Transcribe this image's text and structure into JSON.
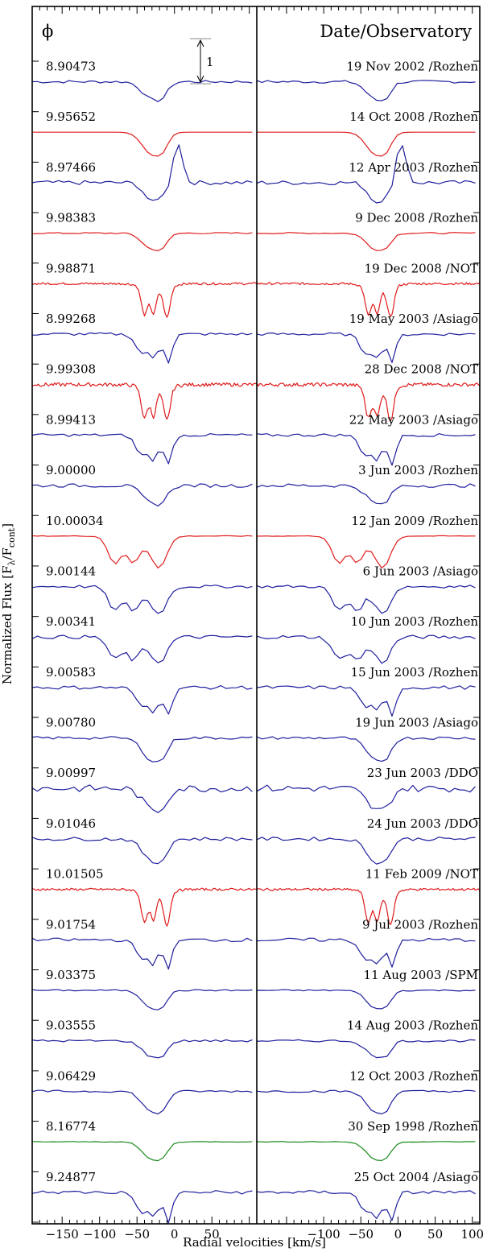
{
  "chart_data": {
    "type": "line",
    "phase_header": "ϕ",
    "right_header": "Date/Observatory",
    "xlabel": "Radial velocities [km/s]",
    "ylabel": "Normalized Flux [F_λ/F_cont]",
    "ylabel_parts": {
      "pre": "Normalized Flux [F",
      "sub1": "λ",
      "mid": "/F",
      "sub2": "cont",
      "post": "]"
    },
    "scale_label": "1",
    "scale_bar_flux": 1,
    "xlim": [
      -190,
      110
    ],
    "panels": [
      "left",
      "right"
    ],
    "xticks": [
      -150,
      -100,
      -50,
      0,
      50,
      100
    ],
    "xtick_labels_left": [
      "−150",
      "−100",
      "−50",
      "0",
      "50"
    ],
    "xtick_labels_right": [
      "−100",
      "−50",
      "0",
      "50",
      "100"
    ],
    "colors": {
      "rozhen_ddo_spm": "#1f1f9e",
      "asiago_not_series": "#e01a1a",
      "green": "#1b8a1b",
      "axis": "#000000"
    },
    "series": [
      {
        "phase": "8.90473",
        "date_observatory": "19 Nov 2002 /Rozhen",
        "color": "#1f1f9e",
        "style": "smooth1",
        "depth": 0.55,
        "noise": 0.04
      },
      {
        "phase": "9.95652",
        "date_observatory": "14 Oct 2008 /Rozhen",
        "color": "#e01a1a",
        "style": "smooth1",
        "depth": 0.7,
        "noise": 0.0
      },
      {
        "phase": "8.97466",
        "date_observatory": "12 Apr 2003 /Rozhen",
        "color": "#1f1f9e",
        "style": "emission",
        "depth": 0.8,
        "noise": 0.06
      },
      {
        "phase": "9.98383",
        "date_observatory": "9 Dec 2008 /Rozhen",
        "color": "#e01a1a",
        "style": "smooth1",
        "depth": 0.5,
        "noise": 0.02
      },
      {
        "phase": "9.98871",
        "date_observatory": "19 Dec 2008 /NOT",
        "color": "#e01a1a",
        "style": "double_sharp",
        "depth": 0.8,
        "noise": 0.05
      },
      {
        "phase": "8.99268",
        "date_observatory": "19 May 2003 /Asiago",
        "color": "#1f1f9e",
        "style": "double",
        "depth": 0.75,
        "noise": 0.04
      },
      {
        "phase": "9.99308",
        "date_observatory": "28 Dec 2008 /NOT",
        "color": "#e01a1a",
        "style": "double_sharp",
        "depth": 0.85,
        "noise": 0.08
      },
      {
        "phase": "8.99413",
        "date_observatory": "22 May 2003 /Asiago",
        "color": "#1f1f9e",
        "style": "double",
        "depth": 0.8,
        "noise": 0.04
      },
      {
        "phase": "9.00000",
        "date_observatory": "3 Jun 2003 /Rozhen",
        "color": "#1f1f9e",
        "style": "smooth1",
        "depth": 0.55,
        "noise": 0.05
      },
      {
        "phase": "10.00034",
        "date_observatory": "12 Jan 2009 /Rozhen",
        "color": "#e01a1a",
        "style": "wide_double",
        "depth": 0.9,
        "noise": 0.01
      },
      {
        "phase": "9.00144",
        "date_observatory": "6 Jun 2003 /Asiago",
        "color": "#1f1f9e",
        "style": "wide_double",
        "depth": 0.75,
        "noise": 0.04
      },
      {
        "phase": "9.00341",
        "date_observatory": "10 Jun 2003 /Rozhen",
        "color": "#1f1f9e",
        "style": "wide_double",
        "depth": 0.7,
        "noise": 0.05
      },
      {
        "phase": "9.00583",
        "date_observatory": "15 Jun 2003 /Rozhen",
        "color": "#1f1f9e",
        "style": "double",
        "depth": 0.75,
        "noise": 0.05
      },
      {
        "phase": "9.00780",
        "date_observatory": "19 Jun 2003 /Asiago",
        "color": "#1f1f9e",
        "style": "smooth1",
        "depth": 0.7,
        "noise": 0.04
      },
      {
        "phase": "9.00997",
        "date_observatory": "23 Jun 2003 /DDO",
        "color": "#1f1f9e",
        "style": "smooth1",
        "depth": 0.65,
        "noise": 0.1
      },
      {
        "phase": "9.01046",
        "date_observatory": "24 Jun 2003 /DDO",
        "color": "#1f1f9e",
        "style": "smooth1",
        "depth": 0.7,
        "noise": 0.05
      },
      {
        "phase": "10.01505",
        "date_observatory": "11 Feb 2009 /NOT",
        "color": "#e01a1a",
        "style": "double_sharp",
        "depth": 0.85,
        "noise": 0.05
      },
      {
        "phase": "9.01754",
        "date_observatory": "9 Jul 2003 /Rozhen",
        "color": "#1f1f9e",
        "style": "double",
        "depth": 0.75,
        "noise": 0.05
      },
      {
        "phase": "9.03375",
        "date_observatory": "11 Aug 2003 /SPM",
        "color": "#1f1f9e",
        "style": "smooth1",
        "depth": 0.55,
        "noise": 0.02
      },
      {
        "phase": "9.03555",
        "date_observatory": "14 Aug 2003 /Rozhen",
        "color": "#1f1f9e",
        "style": "smooth1",
        "depth": 0.5,
        "noise": 0.03
      },
      {
        "phase": "9.06429",
        "date_observatory": "12 Oct 2003 /Rozhen",
        "color": "#1f1f9e",
        "style": "smooth1",
        "depth": 0.65,
        "noise": 0.03
      },
      {
        "phase": "8.16774",
        "date_observatory": "30 Sep 1998 /Rozhen",
        "color": "#1b8a1b",
        "style": "smooth1",
        "depth": 0.55,
        "noise": 0.01
      },
      {
        "phase": "9.24877",
        "date_observatory": "25 Oct 2004 /Asiago",
        "color": "#1f1f9e",
        "style": "double",
        "depth": 0.8,
        "noise": 0.05
      }
    ]
  }
}
